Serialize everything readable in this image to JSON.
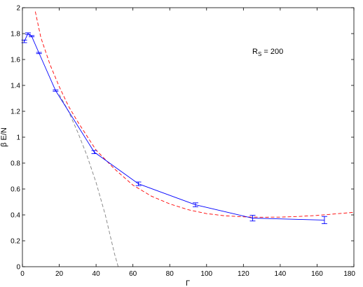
{
  "chart_data": {
    "type": "line",
    "xlabel": "Γ",
    "ylabel": "β E/N",
    "xlim": [
      0,
      180
    ],
    "ylim": [
      0,
      2
    ],
    "xticks": [
      0,
      20,
      40,
      60,
      80,
      100,
      120,
      140,
      160,
      180
    ],
    "yticks": [
      0,
      0.2,
      0.4,
      0.6,
      0.8,
      1,
      1.2,
      1.4,
      1.6,
      1.8,
      2
    ],
    "annotation": {
      "main": "R",
      "sub": "S",
      "rest": " = 200"
    },
    "grid": false,
    "box": true,
    "series": [
      {
        "style": "solid-with-errorbars",
        "color": "#0000ff",
        "x": [
          1,
          3,
          5,
          9,
          18,
          39,
          63,
          94,
          125,
          164
        ],
        "y": [
          1.74,
          1.8,
          1.78,
          1.65,
          1.36,
          0.885,
          0.64,
          0.478,
          0.375,
          0.36
        ],
        "err": [
          0.01,
          0.006,
          0.005,
          0.005,
          0.005,
          0.012,
          0.014,
          0.015,
          0.022,
          0.028
        ]
      },
      {
        "style": "dashed",
        "color": "#ff0000",
        "x": [
          7,
          10,
          15,
          20,
          25,
          30,
          40,
          50,
          60,
          70,
          80,
          90,
          100,
          110,
          120,
          130,
          140,
          150,
          160,
          170,
          180
        ],
        "y": [
          1.97,
          1.77,
          1.56,
          1.39,
          1.24,
          1.12,
          0.9,
          0.755,
          0.63,
          0.545,
          0.485,
          0.44,
          0.41,
          0.393,
          0.385,
          0.382,
          0.383,
          0.388,
          0.396,
          0.408,
          0.42
        ]
      },
      {
        "style": "dashed",
        "color": "#808080",
        "x": [
          20,
          25,
          30,
          35,
          40,
          45,
          50,
          52
        ],
        "y": [
          1.33,
          1.2,
          1.04,
          0.86,
          0.65,
          0.4,
          0.1,
          0.0
        ]
      }
    ]
  }
}
